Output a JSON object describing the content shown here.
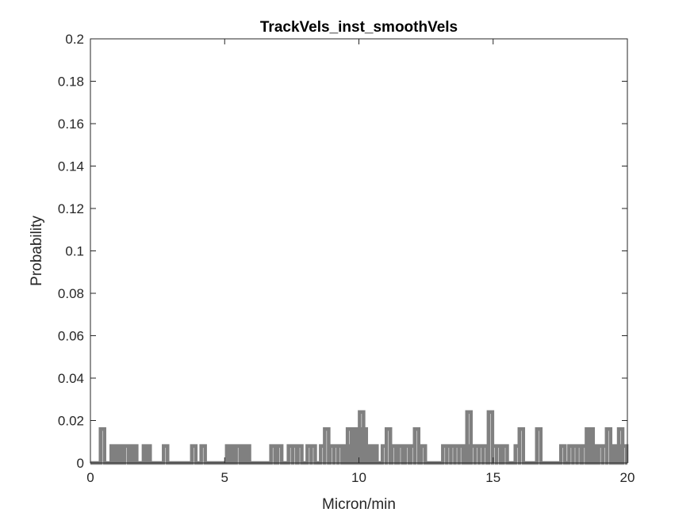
{
  "chart_data": {
    "type": "line",
    "title": "TrackVels_inst_smoothVels",
    "xlabel": "Micron/min",
    "ylabel": "Probability",
    "xlim": [
      0,
      20
    ],
    "ylim": [
      0,
      0.2
    ],
    "xticks": [
      0,
      5,
      10,
      15,
      20
    ],
    "xtick_labels": [
      "0",
      "5",
      "10",
      "15",
      "20"
    ],
    "yticks": [
      0,
      0.02,
      0.04,
      0.06,
      0.08,
      0.1,
      0.12,
      0.14,
      0.16,
      0.18,
      0.2
    ],
    "ytick_labels": [
      "0",
      "0.02",
      "0.04",
      "0.06",
      "0.08",
      "0.1",
      "0.12",
      "0.14",
      "0.16",
      "0.18",
      "0.2"
    ],
    "grid": false,
    "series": [
      {
        "color": "#808080",
        "x": [
          0.45,
          0.85,
          0.95,
          1.05,
          1.15,
          1.35,
          1.55,
          1.65,
          2.05,
          2.15,
          2.8,
          3.85,
          4.2,
          5.15,
          5.25,
          5.5,
          5.75,
          5.85,
          6.8,
          7.05,
          7.45,
          7.6,
          7.8,
          8.15,
          8.3,
          8.65,
          8.8,
          9.0,
          9.15,
          9.3,
          9.45,
          9.55,
          9.65,
          9.7,
          9.8,
          9.9,
          10.0,
          10.1,
          10.2,
          10.3,
          10.4,
          10.5,
          10.6,
          10.95,
          11.1,
          11.3,
          11.55,
          11.8,
          12.0,
          12.15,
          12.4,
          13.2,
          13.35,
          13.5,
          13.65,
          13.8,
          14.0,
          14.1,
          14.25,
          14.4,
          14.55,
          14.7,
          14.9,
          15.05,
          15.2,
          15.45,
          15.9,
          16.05,
          16.7,
          17.6,
          17.9,
          18.05,
          18.2,
          18.4,
          18.55,
          18.65,
          18.75,
          19.0,
          19.15,
          19.3,
          19.55,
          19.65,
          19.75,
          19.9
        ],
        "y": [
          0.016,
          0.008,
          0.008,
          0.008,
          0.008,
          0.008,
          0.008,
          0.008,
          0.008,
          0.008,
          0.008,
          0.008,
          0.008,
          0.008,
          0.008,
          0.008,
          0.008,
          0.008,
          0.008,
          0.008,
          0.008,
          0.008,
          0.008,
          0.008,
          0.008,
          0.008,
          0.016,
          0.008,
          0.008,
          0.008,
          0.008,
          0.008,
          0.016,
          0.008,
          0.008,
          0.016,
          0.016,
          0.024,
          0.016,
          0.008,
          0.008,
          0.008,
          0.008,
          0.008,
          0.016,
          0.008,
          0.008,
          0.008,
          0.008,
          0.016,
          0.008,
          0.008,
          0.008,
          0.008,
          0.008,
          0.008,
          0.008,
          0.024,
          0.008,
          0.008,
          0.008,
          0.008,
          0.024,
          0.008,
          0.008,
          0.008,
          0.008,
          0.016,
          0.016,
          0.008,
          0.008,
          0.008,
          0.008,
          0.008,
          0.016,
          0.016,
          0.008,
          0.008,
          0.008,
          0.016,
          0.008,
          0.008,
          0.016,
          0.008
        ]
      }
    ]
  }
}
